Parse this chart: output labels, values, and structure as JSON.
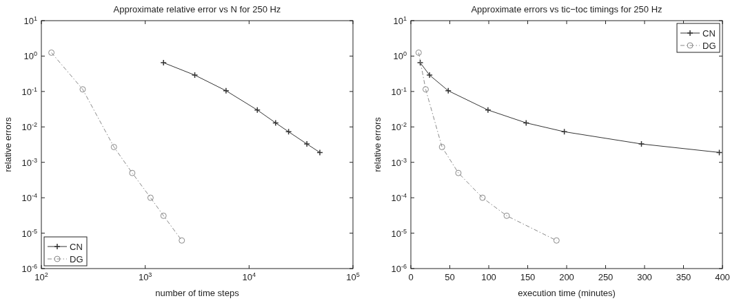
{
  "chart_data": [
    {
      "type": "line",
      "title": "Approximate relative error vs N for 250 Hz",
      "xlabel": "number of time steps",
      "ylabel": "relative errors",
      "log": "xy",
      "legend": "bottom left",
      "grid": false,
      "xlim": [
        100,
        100000
      ],
      "xticks": [
        {
          "value": 100,
          "label": "10$^{2}$"
        },
        {
          "value": 1000,
          "label": "10$^{3}$"
        },
        {
          "value": 10000,
          "label": "10$^{4}$"
        },
        {
          "value": 100000,
          "label": "10$^{5}$"
        }
      ],
      "ylim": [
        1e-06,
        10
      ],
      "yticks": [
        {
          "value": 1e-06,
          "label": "10$^{-6}$"
        },
        {
          "value": 1e-05,
          "label": "10$^{-5}$"
        },
        {
          "value": 0.0001,
          "label": "10$^{-4}$"
        },
        {
          "value": 0.001,
          "label": "10$^{-3}$"
        },
        {
          "value": 0.01,
          "label": "10$^{-2}$"
        },
        {
          "value": 0.1,
          "label": "10$^{-1}$"
        },
        {
          "value": 1,
          "label": "10$^{0}$"
        },
        {
          "value": 10,
          "label": "10$^{1}$"
        }
      ],
      "series": [
        {
          "name": "CN",
          "color": "#333333",
          "marker": "cross",
          "line_style": "solid",
          "x": [
            1500,
            3000,
            6000,
            12000,
            18000,
            24000,
            36000,
            48000
          ],
          "values": [
            0.65,
            0.29,
            0.105,
            0.03,
            0.013,
            0.0073,
            0.0033,
            0.0019
          ]
        },
        {
          "name": "DG",
          "color": "#888888",
          "marker": "circle",
          "line_style": "dashed",
          "x": [
            125,
            250,
            500,
            750,
            1125,
            1500,
            2250
          ],
          "values": [
            1.25,
            0.115,
            0.0027,
            0.0005,
            0.0001,
            3.1e-05,
            6.2e-06
          ]
        }
      ]
    },
    {
      "type": "line",
      "title": "Approximate errors vs tic−toc timings for 250 Hz",
      "xlabel": "execution time (minutes)",
      "ylabel": "relative errors",
      "log": "y",
      "legend": "top right",
      "grid": false,
      "xlim": [
        0,
        400
      ],
      "xticks": [
        0,
        50,
        100,
        150,
        200,
        250,
        300,
        350,
        400
      ],
      "ylim": [
        1e-06,
        10
      ],
      "yticks": [
        {
          "value": 1e-06,
          "label": "10$^{-6}$"
        },
        {
          "value": 1e-05,
          "label": "10$^{-5}$"
        },
        {
          "value": 0.0001,
          "label": "10$^{-4}$"
        },
        {
          "value": 0.001,
          "label": "10$^{-3}$"
        },
        {
          "value": 0.01,
          "label": "10$^{-2}$"
        },
        {
          "value": 0.1,
          "label": "10$^{-1}$"
        },
        {
          "value": 1,
          "label": "10$^{0}$"
        },
        {
          "value": 10,
          "label": "10$^{1}$"
        }
      ],
      "series": [
        {
          "name": "CN",
          "color": "#333333",
          "marker": "cross",
          "line_style": "solid",
          "x": [
            12,
            24,
            48,
            99,
            148,
            197,
            296,
            396
          ],
          "values": [
            0.65,
            0.29,
            0.105,
            0.03,
            0.013,
            0.0073,
            0.0033,
            0.0019
          ]
        },
        {
          "name": "DG",
          "color": "#888888",
          "marker": "circle",
          "line_style": "dashed",
          "x": [
            10,
            19,
            40,
            61,
            92,
            123,
            187
          ],
          "values": [
            1.25,
            0.115,
            0.0027,
            0.0005,
            0.0001,
            3.1e-05,
            6.2e-06
          ]
        }
      ]
    }
  ]
}
